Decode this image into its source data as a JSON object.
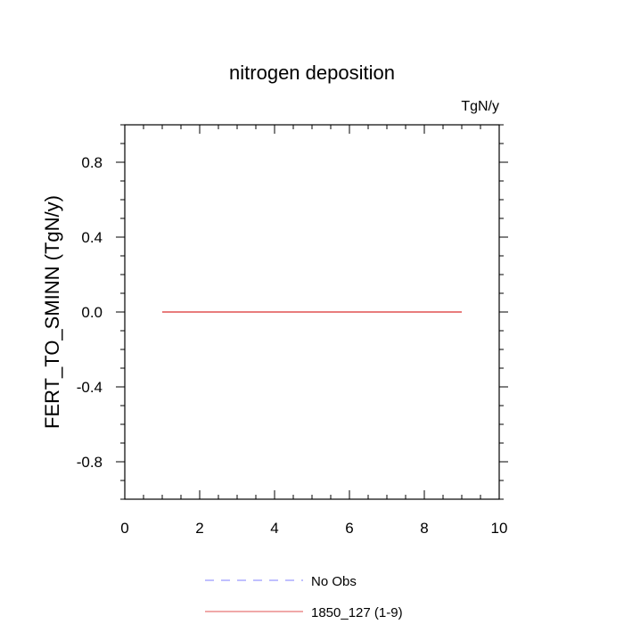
{
  "chart_data": {
    "type": "line",
    "title": "nitrogen deposition",
    "units": "TgN/y",
    "xlabel": "",
    "ylabel": "FERT_TO_SMINN  (TgN/y)",
    "xlim": [
      0,
      10
    ],
    "ylim": [
      -1,
      1
    ],
    "x_ticks": [
      0,
      2,
      4,
      6,
      8,
      10
    ],
    "x_tick_labels": [
      "0",
      "2",
      "4",
      "6",
      "8",
      "10"
    ],
    "y_ticks": [
      -0.8,
      -0.4,
      0.0,
      0.4,
      0.8
    ],
    "y_tick_labels": [
      "-0.8",
      "-0.4",
      "0.0",
      "0.4",
      "0.8"
    ],
    "grid": false,
    "legend_position": "bottom",
    "series": [
      {
        "name": "No Obs",
        "color": "#8080ff",
        "dash": "dashed",
        "x": [],
        "y": []
      },
      {
        "name": "1850_127 (1-9)",
        "color": "#e05050",
        "dash": "solid",
        "x": [
          1,
          2,
          3,
          4,
          5,
          6,
          7,
          8,
          9
        ],
        "y": [
          0,
          0,
          0,
          0,
          0,
          0,
          0,
          0,
          0
        ]
      }
    ]
  }
}
